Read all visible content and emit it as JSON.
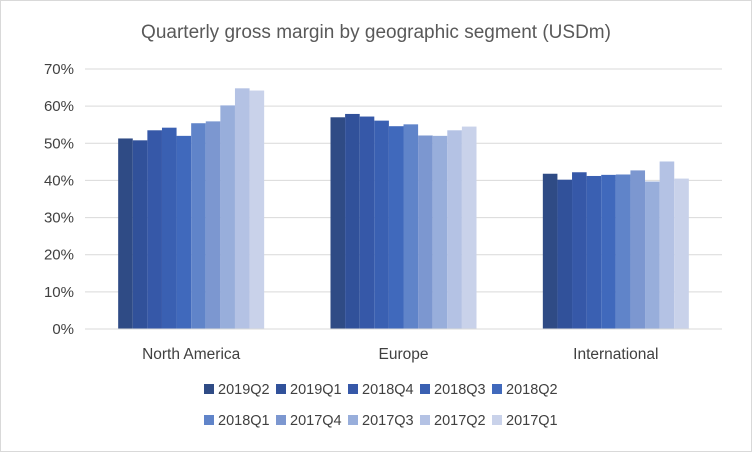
{
  "chart_data": {
    "type": "bar",
    "title": "Quarterly gross margin by geographic segment (USDm)",
    "xlabel": "",
    "ylabel": "",
    "categories": [
      "North America",
      "Europe",
      "International"
    ],
    "ylim": [
      0,
      70
    ],
    "yticks": [
      "0%",
      "10%",
      "20%",
      "30%",
      "40%",
      "50%",
      "60%",
      "70%"
    ],
    "grid": true,
    "legend_position": "bottom",
    "series": [
      {
        "name": "2019Q2",
        "color": "#2f4b85",
        "values": [
          51.3,
          57.0,
          41.8
        ]
      },
      {
        "name": "2019Q1",
        "color": "#31519a",
        "values": [
          50.8,
          57.9,
          40.2
        ]
      },
      {
        "name": "2018Q4",
        "color": "#3658a8",
        "values": [
          53.5,
          57.2,
          42.2
        ]
      },
      {
        "name": "2018Q3",
        "color": "#3a60b2",
        "values": [
          54.2,
          56.1,
          41.2
        ]
      },
      {
        "name": "2018Q2",
        "color": "#4069bc",
        "values": [
          52.0,
          54.6,
          41.5
        ]
      },
      {
        "name": "2018Q1",
        "color": "#6084c9",
        "values": [
          55.4,
          55.1,
          41.6
        ]
      },
      {
        "name": "2017Q4",
        "color": "#7c97d0",
        "values": [
          55.9,
          52.1,
          42.7
        ]
      },
      {
        "name": "2017Q3",
        "color": "#98aedb",
        "values": [
          60.2,
          52.0,
          39.7
        ]
      },
      {
        "name": "2017Q2",
        "color": "#b4c2e4",
        "values": [
          64.8,
          53.5,
          45.1
        ]
      },
      {
        "name": "2017Q1",
        "color": "#c9d2ea",
        "values": [
          64.2,
          54.5,
          40.5
        ]
      }
    ]
  }
}
